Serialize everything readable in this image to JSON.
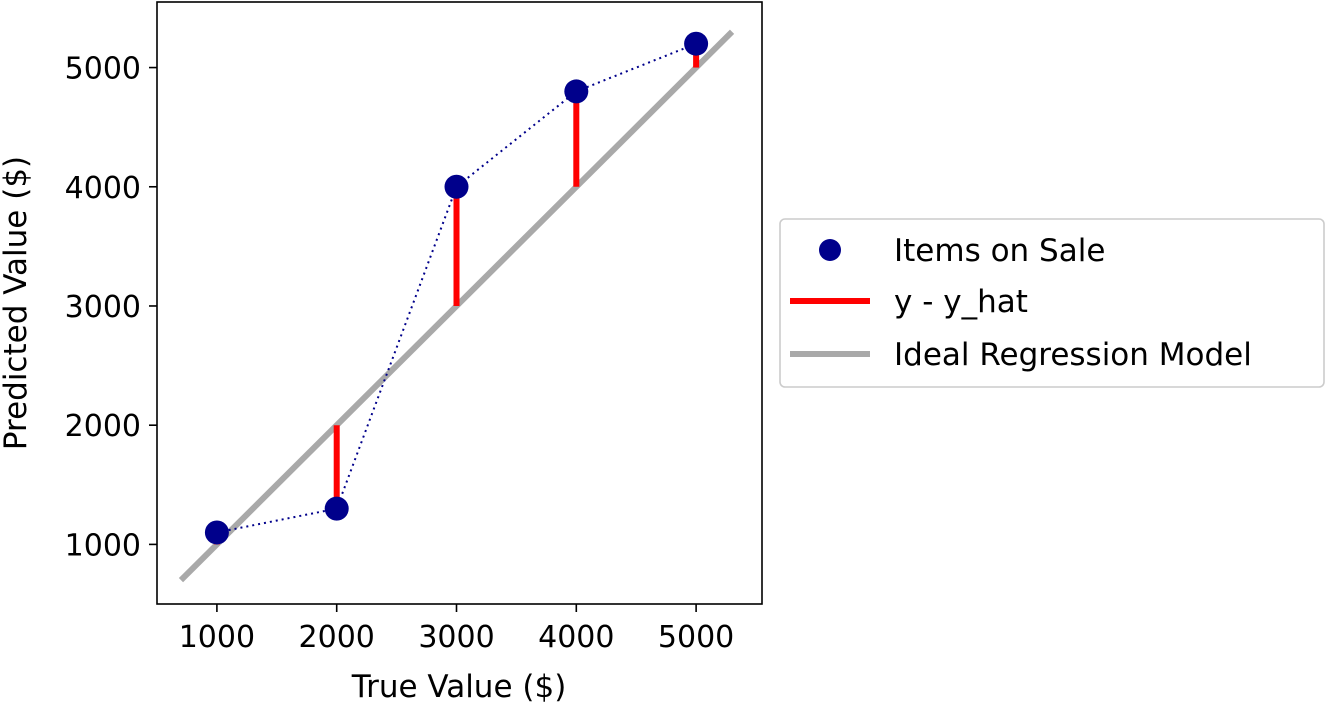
{
  "chart_data": {
    "type": "scatter",
    "title": "",
    "xlabel": "True Value ($)",
    "ylabel": "Predicted Value ($)",
    "xlim": [
      500,
      5550
    ],
    "ylim": [
      500,
      5550
    ],
    "xticks": [
      "1000",
      "2000",
      "3000",
      "4000",
      "5000"
    ],
    "yticks": [
      "1000",
      "2000",
      "3000",
      "4000",
      "5000"
    ],
    "grid": false,
    "legend_position": "right, outside plot",
    "series": [
      {
        "name": "Items on Sale",
        "kind": "scatter with dotted connecting line",
        "color": "#00008b",
        "x": [
          1000,
          2000,
          3000,
          4000,
          5000
        ],
        "y": [
          1100,
          1300,
          4000,
          4800,
          5200
        ]
      },
      {
        "name": "y - y_hat",
        "kind": "vertical residual segments",
        "color": "#ff0000"
      },
      {
        "name": "Ideal Regression Model",
        "kind": "identity line y = x",
        "color": "#a9a9a9",
        "x": [
          700,
          5300
        ],
        "y": [
          700,
          5300
        ]
      }
    ]
  }
}
